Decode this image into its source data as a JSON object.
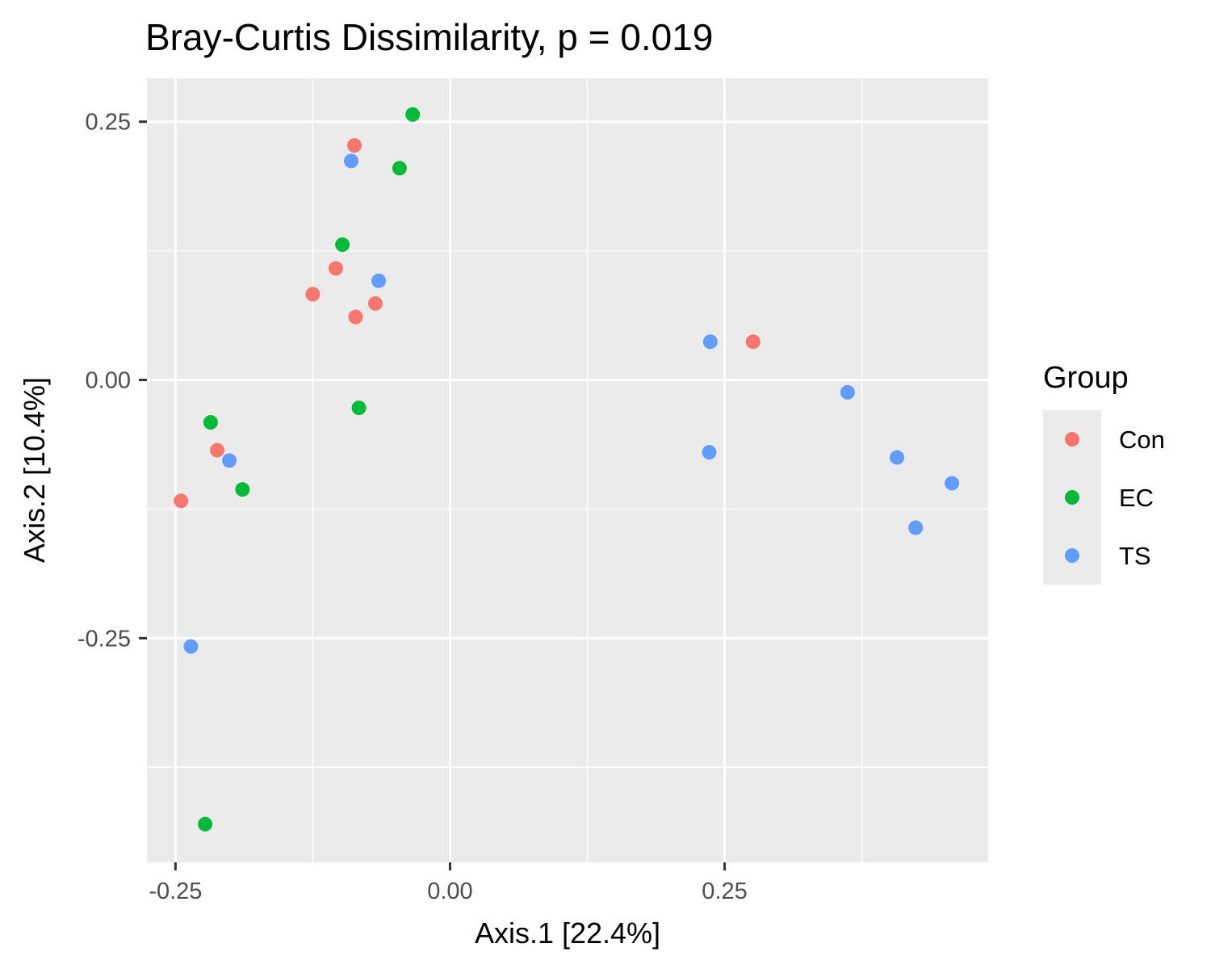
{
  "chart_data": {
    "type": "scatter",
    "title": "Bray-Curtis Dissimilarity, p = 0.019",
    "xlabel": "Axis.1   [22.4%]",
    "ylabel": "Axis.2   [10.4%]",
    "xlim": [
      -0.276,
      0.49
    ],
    "ylim": [
      -0.467,
      0.292
    ],
    "x_ticks": [
      -0.25,
      0.0,
      0.25
    ],
    "x_tick_labels": [
      "-0.25",
      "0.00",
      "0.25"
    ],
    "y_ticks": [
      -0.25,
      0.0,
      0.25
    ],
    "y_tick_labels": [
      "-0.25",
      "0.00",
      "0.25"
    ],
    "grid": true,
    "legend": {
      "title": "Group",
      "position": "right",
      "entries": [
        "Con",
        "EC",
        "TS"
      ]
    },
    "colors": {
      "Con": "#F8766D",
      "EC": "#00BA38",
      "TS": "#619CFF",
      "panel": "#EBEBEB",
      "grid": "#FFFFFF"
    },
    "series": [
      {
        "name": "Con",
        "points": [
          [
            -0.087,
            0.227
          ],
          [
            -0.104,
            0.108
          ],
          [
            -0.125,
            0.083
          ],
          [
            -0.086,
            0.061
          ],
          [
            -0.068,
            0.074
          ],
          [
            0.276,
            0.037
          ],
          [
            -0.212,
            -0.068
          ],
          [
            -0.245,
            -0.117
          ]
        ]
      },
      {
        "name": "EC",
        "points": [
          [
            -0.034,
            0.257
          ],
          [
            -0.046,
            0.205
          ],
          [
            -0.098,
            0.131
          ],
          [
            -0.083,
            -0.027
          ],
          [
            -0.218,
            -0.041
          ],
          [
            -0.189,
            -0.106
          ],
          [
            -0.223,
            -0.43
          ]
        ]
      },
      {
        "name": "TS",
        "points": [
          [
            -0.09,
            0.212
          ],
          [
            -0.065,
            0.096
          ],
          [
            0.237,
            0.037
          ],
          [
            0.236,
            -0.07
          ],
          [
            0.362,
            -0.012
          ],
          [
            0.407,
            -0.075
          ],
          [
            0.424,
            -0.143
          ],
          [
            0.457,
            -0.1
          ],
          [
            -0.201,
            -0.078
          ],
          [
            -0.236,
            -0.258
          ]
        ]
      }
    ]
  }
}
